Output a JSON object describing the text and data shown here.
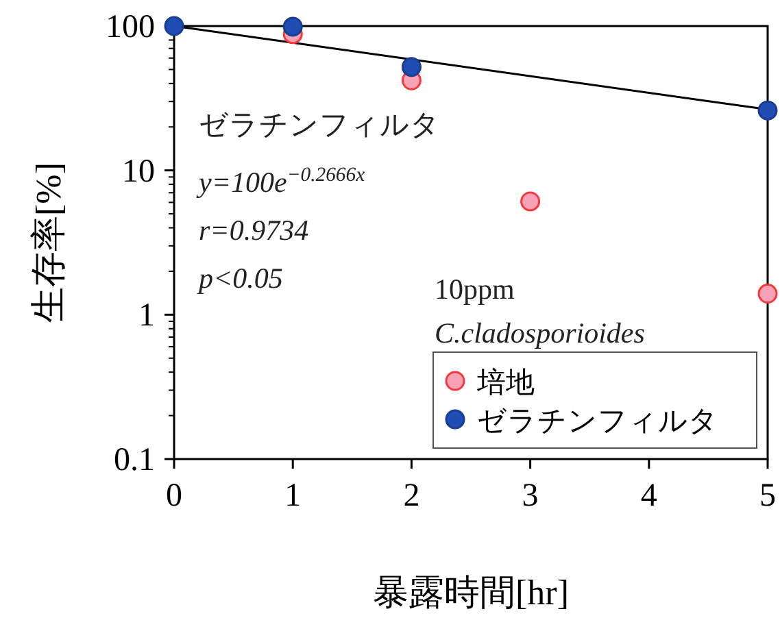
{
  "chart_data": {
    "type": "scatter",
    "xlabel": "暴露時間[hr]",
    "ylabel": "生存率[%]",
    "series": [
      {
        "name": "培地",
        "color": "#f7a3b5",
        "x": [
          1,
          2,
          3,
          5
        ],
        "values": [
          88,
          42,
          6.1,
          1.4
        ]
      },
      {
        "name": "ゼラチンフィルタ",
        "color": "#1f4db3",
        "x": [
          0,
          1,
          2,
          5
        ],
        "values": [
          100,
          99,
          52,
          26
        ]
      },
      {
        "type": "line",
        "color": "#000000",
        "x": [
          0,
          5
        ],
        "values": [
          100,
          26.4
        ],
        "marker": "none"
      }
    ],
    "xlim": [
      0,
      5
    ],
    "xticks": [
      0,
      1,
      2,
      3,
      4,
      5
    ],
    "ylim": [
      0.1,
      100
    ],
    "yticks": [
      0.1,
      1,
      10,
      100
    ],
    "log": true,
    "marker": "circle",
    "legend": "bottom right",
    "annotations": [
      "ゼラチンフィルタ",
      "y=100e$^{−0.2666x}$",
      "r=0.9734",
      "p<0.05",
      "10ppm",
      "C.cladosporioides"
    ]
  }
}
